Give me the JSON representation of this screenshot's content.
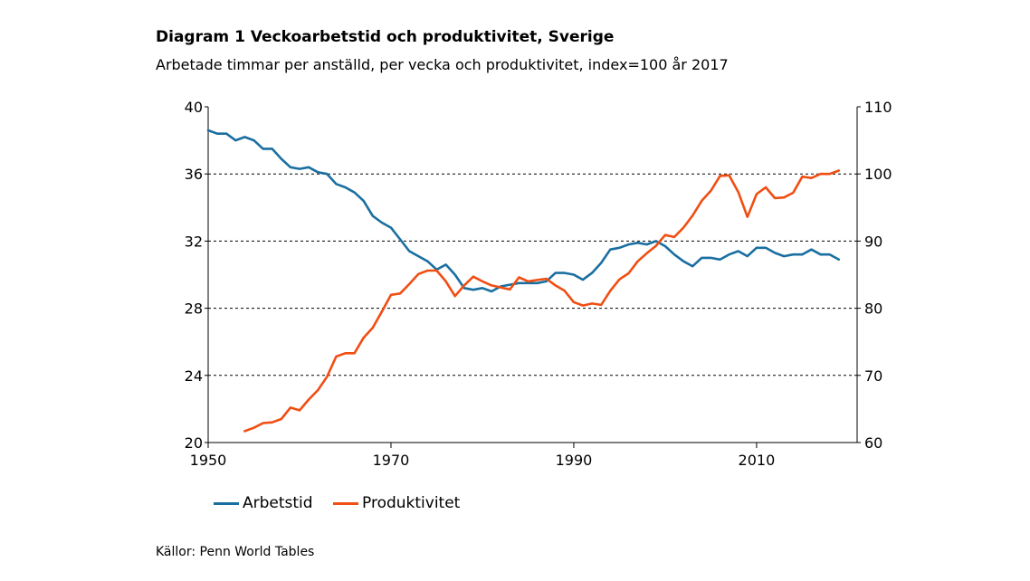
{
  "chart_data": {
    "type": "line",
    "title": "Diagram 1 Veckoarbetstid och produktivitet, Sverige",
    "subtitle": "Arbetade timmar per anställd, per vecka och produktivitet, index=100 år 2017",
    "source": "Källor: Penn World Tables",
    "x_ticks": [
      1950,
      1970,
      1990,
      2010
    ],
    "xlim": [
      1950,
      2021
    ],
    "y_left": {
      "ylim": [
        20,
        40
      ],
      "ticks": [
        20,
        24,
        28,
        32,
        36,
        40
      ]
    },
    "y_right": {
      "ylim": [
        60,
        110
      ],
      "ticks": [
        60,
        70,
        80,
        90,
        100,
        110
      ]
    },
    "grid": "horizontal dashed",
    "legend_position": "bottom",
    "colors": {
      "Arbetstid": "#1a6fa0",
      "Produktivitet": "#f04e13"
    },
    "series": [
      {
        "name": "Arbetstid",
        "axis": "left",
        "x": [
          1950,
          1951,
          1952,
          1953,
          1954,
          1955,
          1956,
          1957,
          1958,
          1959,
          1960,
          1961,
          1962,
          1963,
          1964,
          1965,
          1966,
          1967,
          1968,
          1969,
          1970,
          1971,
          1972,
          1973,
          1974,
          1975,
          1976,
          1977,
          1978,
          1979,
          1980,
          1981,
          1982,
          1983,
          1984,
          1985,
          1986,
          1987,
          1988,
          1989,
          1990,
          1991,
          1992,
          1993,
          1994,
          1995,
          1996,
          1997,
          1998,
          1999,
          2000,
          2001,
          2002,
          2003,
          2004,
          2005,
          2006,
          2007,
          2008,
          2009,
          2010,
          2011,
          2012,
          2013,
          2014,
          2015,
          2016,
          2017,
          2018,
          2019
        ],
        "values": [
          38.6,
          38.4,
          38.4,
          38.0,
          38.2,
          38.0,
          37.5,
          37.5,
          36.9,
          36.4,
          36.3,
          36.4,
          36.1,
          36.0,
          35.4,
          35.2,
          34.9,
          34.4,
          33.5,
          33.1,
          32.8,
          32.1,
          31.4,
          31.1,
          30.8,
          30.3,
          30.6,
          30.0,
          29.2,
          29.1,
          29.2,
          29.0,
          29.3,
          29.4,
          29.5,
          29.5,
          29.5,
          29.6,
          30.1,
          30.1,
          30.0,
          29.7,
          30.1,
          30.7,
          31.5,
          31.6,
          31.8,
          31.9,
          31.8,
          32.0,
          31.7,
          31.2,
          30.8,
          30.5,
          31.0,
          31.0,
          30.9,
          31.2,
          31.4,
          31.1,
          31.6,
          31.6,
          31.3,
          31.1,
          31.2,
          31.2,
          31.5,
          31.2,
          31.2,
          30.9
        ]
      },
      {
        "name": "Produktivitet",
        "axis": "right",
        "x": [
          1954,
          1955,
          1956,
          1957,
          1958,
          1959,
          1960,
          1961,
          1962,
          1963,
          1964,
          1965,
          1966,
          1967,
          1968,
          1969,
          1970,
          1971,
          1972,
          1973,
          1974,
          1975,
          1976,
          1977,
          1978,
          1979,
          1980,
          1981,
          1982,
          1983,
          1984,
          1985,
          1986,
          1987,
          1988,
          1989,
          1990,
          1991,
          1992,
          1993,
          1994,
          1995,
          1996,
          1997,
          1998,
          1999,
          2000,
          2001,
          2002,
          2003,
          2004,
          2005,
          2006,
          2007,
          2008,
          2009,
          2010,
          2011,
          2012,
          2013,
          2014,
          2015,
          2016,
          2017,
          2018,
          2019
        ],
        "values": [
          61.7,
          62.2,
          62.9,
          63.0,
          63.5,
          65.2,
          64.8,
          66.4,
          67.8,
          69.8,
          72.8,
          73.3,
          73.3,
          75.6,
          77.1,
          79.5,
          82.0,
          82.2,
          83.6,
          85.1,
          85.6,
          85.6,
          84.0,
          81.8,
          83.4,
          84.7,
          84.0,
          83.4,
          83.1,
          82.8,
          84.6,
          84.0,
          84.2,
          84.4,
          83.4,
          82.6,
          80.9,
          80.4,
          80.7,
          80.5,
          82.6,
          84.3,
          85.2,
          87.0,
          88.2,
          89.3,
          90.9,
          90.6,
          92.0,
          93.8,
          96.0,
          97.5,
          99.7,
          99.8,
          97.3,
          93.6,
          97.0,
          98.0,
          96.4,
          96.5,
          97.2,
          99.6,
          99.4,
          100.0,
          100.0,
          100.5
        ]
      }
    ]
  }
}
